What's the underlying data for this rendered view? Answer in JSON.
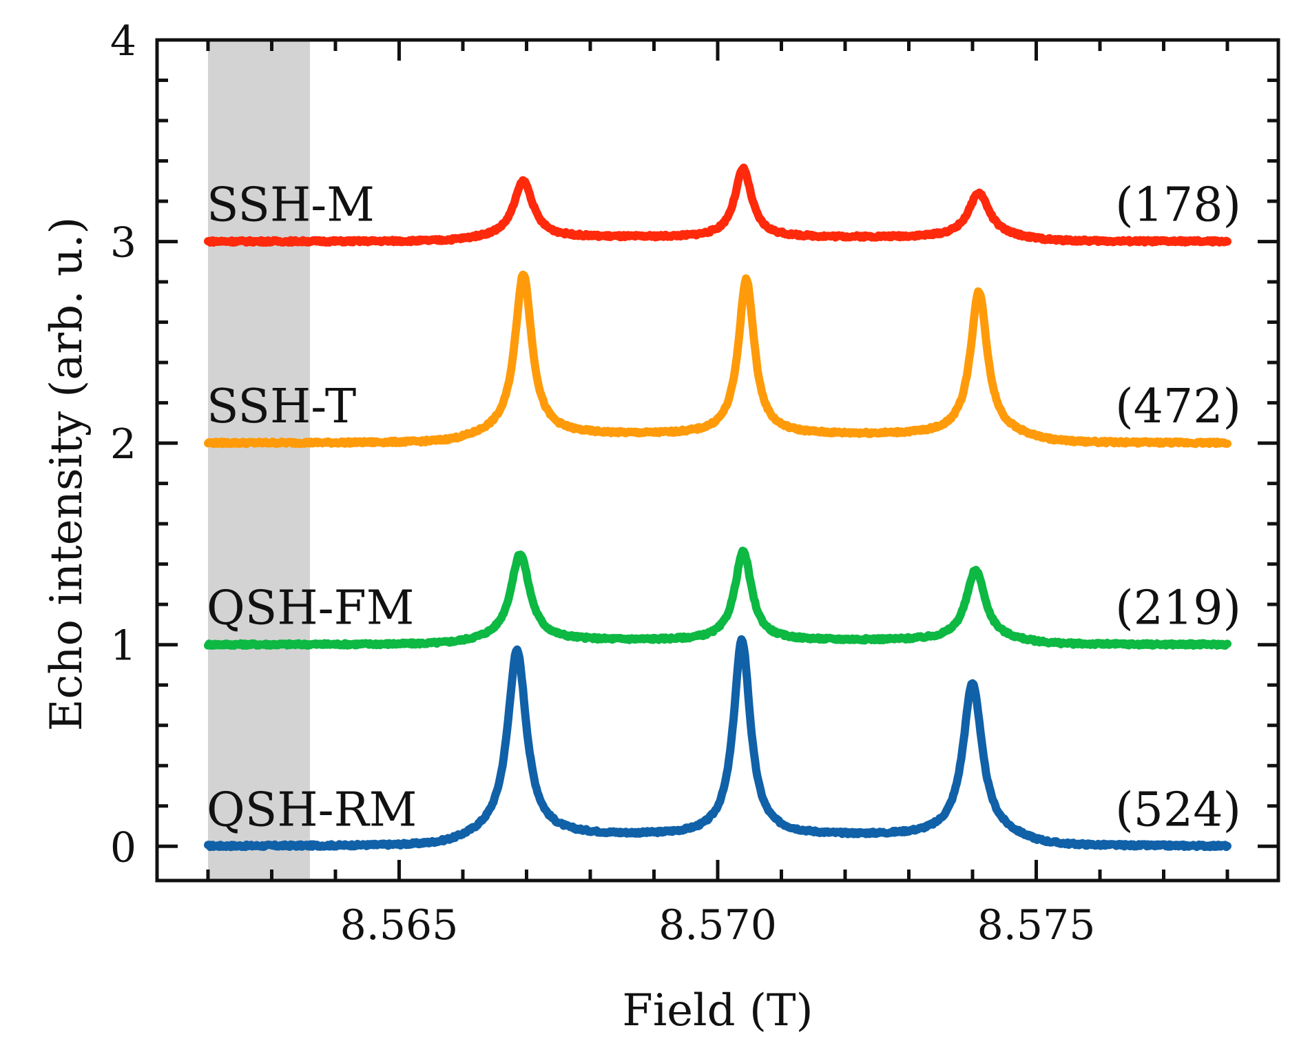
{
  "chart_data": {
    "type": "line",
    "xlabel": "Field (T)",
    "ylabel": "Echo intensity (arb. u.)",
    "xlim": [
      8.5612,
      8.5788
    ],
    "ylim": [
      -0.17,
      4.0
    ],
    "x_ticks": [
      8.565,
      8.57,
      8.575
    ],
    "x_tick_labels": [
      "8.565",
      "8.570",
      "8.575"
    ],
    "y_ticks": [
      0,
      1,
      2,
      3,
      4
    ],
    "y_tick_labels": [
      "0",
      "1",
      "2",
      "3",
      "4"
    ],
    "shaded_region": {
      "x": [
        8.562,
        8.5636
      ],
      "color": "#d3d3d3"
    },
    "x_range": [
      8.562,
      8.578
    ],
    "series": [
      {
        "name": "QSH-RM",
        "count": "(524)",
        "color": "#1061a8",
        "baseline": 0.0,
        "peaks": [
          {
            "x": 8.56685,
            "height": 0.92,
            "width": 0.00018
          },
          {
            "x": 8.57038,
            "height": 0.97,
            "width": 0.00016
          },
          {
            "x": 8.574,
            "height": 0.76,
            "width": 0.00018
          }
        ],
        "plateau": 0.05
      },
      {
        "name": "QSH-FM",
        "count": "(219)",
        "color": "#0db843",
        "baseline": 1.0,
        "peaks": [
          {
            "x": 8.5669,
            "height": 0.43,
            "width": 0.00018
          },
          {
            "x": 8.5704,
            "height": 0.44,
            "width": 0.00016
          },
          {
            "x": 8.57405,
            "height": 0.35,
            "width": 0.00018
          }
        ],
        "plateau": 0.02
      },
      {
        "name": "SSH-T",
        "count": "(472)",
        "color": "#ff9b0a",
        "baseline": 2.0,
        "peaks": [
          {
            "x": 8.56695,
            "height": 0.8,
            "width": 0.00016
          },
          {
            "x": 8.57045,
            "height": 0.77,
            "width": 0.00015
          },
          {
            "x": 8.5741,
            "height": 0.71,
            "width": 0.00016
          }
        ],
        "plateau": 0.04
      },
      {
        "name": "SSH-M",
        "count": "(178)",
        "color": "#ff2a0c",
        "baseline": 3.0,
        "peaks": [
          {
            "x": 8.56695,
            "height": 0.28,
            "width": 0.00018
          },
          {
            "x": 8.5704,
            "height": 0.34,
            "width": 0.00016
          },
          {
            "x": 8.5741,
            "height": 0.22,
            "width": 0.0002
          }
        ],
        "plateau": 0.02
      }
    ]
  }
}
